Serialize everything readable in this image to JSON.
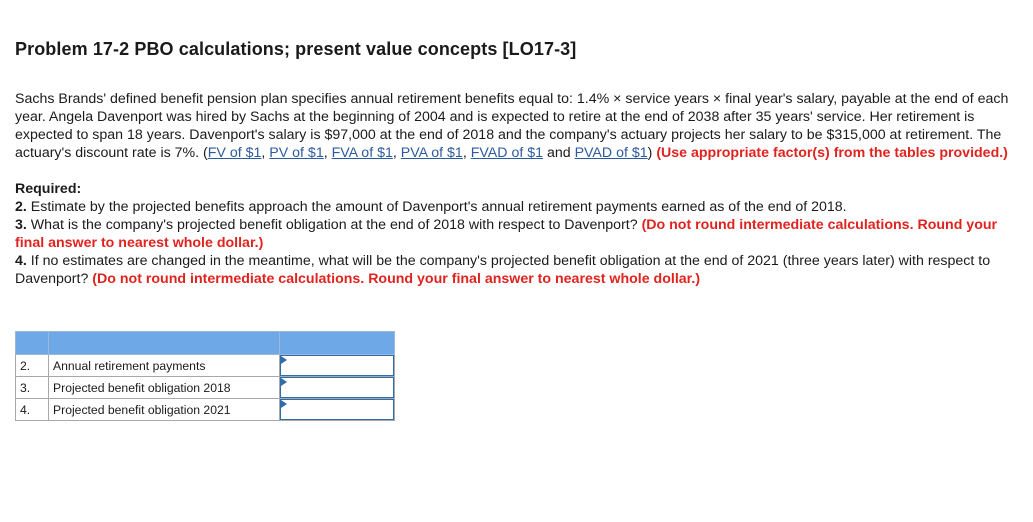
{
  "problem": {
    "title": "Problem 17-2 PBO calculations; present value concepts [LO17-3]",
    "intro": "Sachs Brands' defined benefit pension plan specifies annual retirement benefits equal to: 1.4% × service years × final year's salary, payable at the end of each year. Angela Davenport was hired by Sachs at the beginning of 2004 and is expected to retire at the end of 2038 after 35 years' service. Her retirement is expected to span 18 years. Davenport's salary is $97,000 at the end of 2018 and the company's actuary projects her salary to be $315,000 at retirement. The actuary's discount rate is 7%. (",
    "links": [
      "FV of $1",
      "PV of $1",
      "FVA of $1",
      "PVA of $1",
      "FVAD of $1",
      "PVAD of $1"
    ],
    "sep_comma": ", ",
    "sep_and": " and ",
    "close_paren": ") ",
    "factor_note": "(Use appropriate factor(s) from the tables provided.)"
  },
  "required": {
    "heading": "Required:",
    "items": [
      {
        "num": "2.",
        "text": " Estimate by the projected benefits approach the amount of Davenport's annual retirement payments earned as of the end of 2018.",
        "note": ""
      },
      {
        "num": "3.",
        "text": " What is the company's projected benefit obligation at the end of 2018 with respect to Davenport? ",
        "note": "(Do not round intermediate calculations. Round your final answer to nearest whole dollar.)"
      },
      {
        "num": "4.",
        "text": " If no estimates are changed in the meantime, what will be the company's projected benefit obligation at the end of 2021 (three years later) with respect to Davenport? ",
        "note": "(Do not round intermediate calculations. Round your final answer to nearest whole dollar.)"
      }
    ]
  },
  "answer_table": {
    "rows": [
      {
        "num": "2.",
        "label": "Annual retirement payments",
        "value": ""
      },
      {
        "num": "3.",
        "label": "Projected benefit obligation 2018",
        "value": ""
      },
      {
        "num": "4.",
        "label": "Projected benefit obligation 2021",
        "value": ""
      }
    ]
  },
  "colors": {
    "header_fill": "#6fa8e6",
    "link": "#2c5aa0",
    "instruction_red": "#e0231f",
    "input_border": "#2e6dad"
  }
}
